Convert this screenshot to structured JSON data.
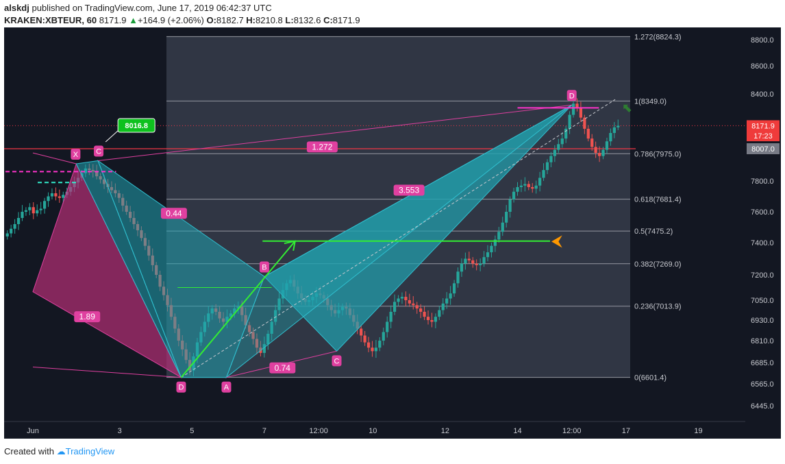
{
  "header": {
    "author": "alskdj",
    "published": "published on TradingView.com, June 17, 2019 06:42:37 UTC",
    "symbol": "KRAKEN:XBTEUR, 60",
    "last": "8171.9",
    "change": "+164.9 (+2.06%)",
    "o_label": "O:",
    "o": "8182.7",
    "h_label": "H:",
    "h": "8210.8",
    "l_label": "L:",
    "l": "8132.6",
    "c_label": "C:",
    "c": "8171.9"
  },
  "footer": {
    "created": "Created with",
    "brand": "TradingView"
  },
  "chart_data": {
    "type": "candlestick",
    "symbol": "KRAKEN:XBTEUR",
    "interval": "60",
    "y_ticks": [
      {
        "label": "8800.0",
        "value": 8800
      },
      {
        "label": "8600.0",
        "value": 8600
      },
      {
        "label": "8400.0",
        "value": 8400
      },
      {
        "label": "8007.0",
        "value": 8007
      },
      {
        "label": "7800.0",
        "value": 7800
      },
      {
        "label": "7600.0",
        "value": 7600
      },
      {
        "label": "7400.0",
        "value": 7400
      },
      {
        "label": "7200.0",
        "value": 7200
      },
      {
        "label": "7050.0",
        "value": 7050
      },
      {
        "label": "6930.0",
        "value": 6930
      },
      {
        "label": "6810.0",
        "value": 6810
      },
      {
        "label": "6685.0",
        "value": 6685
      },
      {
        "label": "6565.0",
        "value": 6565
      },
      {
        "label": "6445.0",
        "value": 6445
      }
    ],
    "x_ticks": [
      {
        "label": "Jun",
        "day": 0.6
      },
      {
        "label": "3",
        "day": 3
      },
      {
        "label": "5",
        "day": 5
      },
      {
        "label": "7",
        "day": 7
      },
      {
        "label": "12:00",
        "day": 8.5
      },
      {
        "label": "10",
        "day": 10
      },
      {
        "label": "12",
        "day": 12
      },
      {
        "label": "14",
        "day": 14
      },
      {
        "label": "12:00",
        "day": 15.5
      },
      {
        "label": "17",
        "day": 17
      },
      {
        "label": "19",
        "day": 19
      }
    ],
    "price_labels": [
      {
        "label": "8171.9",
        "value": 8171.9,
        "color": "#ef3b3b"
      },
      {
        "label": "17:23",
        "value": 8100,
        "color": "#ef3b3b"
      },
      {
        "label": "8007.0",
        "value": 8007,
        "color": "#787b86"
      }
    ],
    "fib_levels": [
      {
        "label": "1.272(8824.3)",
        "value": 8824.3
      },
      {
        "label": "1(8349.0)",
        "value": 8349.0
      },
      {
        "label": "0.786(7975.0)",
        "value": 7975.0
      },
      {
        "label": "0.618(7681.4)",
        "value": 7681.4
      },
      {
        "label": "0.5(7475.2)",
        "value": 7475.2
      },
      {
        "label": "0.382(7269.0)",
        "value": 7269.0
      },
      {
        "label": "0.236(7013.9)",
        "value": 7013.9
      },
      {
        "label": "0(6601.4)",
        "value": 6601.4
      }
    ],
    "red_line": 8007,
    "callout": {
      "label": "8016.8",
      "day": 2.8,
      "value": 8016.8
    },
    "harmonic_points": [
      {
        "label": "X",
        "day": 1.8,
        "value": 7910
      },
      {
        "label": "C",
        "day": 2.4,
        "value": 7930
      },
      {
        "label": "D",
        "day": 4.7,
        "value": 6601
      },
      {
        "label": "A",
        "day": 5.95,
        "value": 6601
      },
      {
        "label": "B",
        "day": 7.0,
        "value": 7190
      },
      {
        "label": "C",
        "day": 9.0,
        "value": 6750
      },
      {
        "label": "D",
        "day": 15.5,
        "value": 8320
      }
    ],
    "ratios": [
      {
        "label": "1.89",
        "day": 2.1,
        "value": 6950
      },
      {
        "label": "0.44",
        "day": 4.5,
        "value": 7590
      },
      {
        "label": "3.553",
        "day": 11.0,
        "value": 7740
      },
      {
        "label": "1.272",
        "day": 8.6,
        "value": 8020
      },
      {
        "label": "0.74",
        "day": 7.5,
        "value": 6655
      }
    ],
    "candles_close": [
      7460,
      7490,
      7520,
      7560,
      7600,
      7610,
      7630,
      7590,
      7610,
      7620,
      7670,
      7700,
      7720,
      7700,
      7690,
      7710,
      7730,
      7760,
      7790,
      7820,
      7850,
      7880,
      7870,
      7860,
      7830,
      7810,
      7780,
      7760,
      7740,
      7720,
      7690,
      7640,
      7600,
      7560,
      7520,
      7480,
      7430,
      7380,
      7320,
      7260,
      7200,
      7130,
      7080,
      7020,
      6950,
      6880,
      6810,
      6760,
      6700,
      6640,
      6720,
      6800,
      6860,
      6920,
      6970,
      7000,
      6980,
      6940,
      6920,
      6950,
      6970,
      7000,
      7010,
      6960,
      6900,
      6860,
      6820,
      6770,
      6740,
      6790,
      6850,
      6920,
      6990,
      7060,
      7110,
      7150,
      7170,
      7130,
      7090,
      7060,
      7040,
      7050,
      7070,
      7090,
      7080,
      7060,
      7020,
      6990,
      6970,
      6990,
      7010,
      7000,
      6960,
      6920,
      6880,
      6840,
      6800,
      6770,
      6750,
      6770,
      6810,
      6860,
      6920,
      6980,
      7040,
      7060,
      7070,
      7050,
      7030,
      7020,
      7000,
      6980,
      6950,
      6930,
      6920,
      6950,
      6990,
      7030,
      7060,
      7090,
      7150,
      7220,
      7270,
      7300,
      7290,
      7270,
      7260,
      7270,
      7310,
      7340,
      7380,
      7420,
      7470,
      7530,
      7600,
      7680,
      7730,
      7760,
      7770,
      7780,
      7760,
      7750,
      7770,
      7820,
      7870,
      7920,
      7960,
      8000,
      8040,
      8080,
      8150,
      8250,
      8330,
      8300,
      8230,
      8150,
      8080,
      8020,
      7980,
      7960,
      8000,
      8060,
      8120,
      8160,
      8172
    ],
    "harmonic_colors": {
      "pink": "#c2307c",
      "teal": "#21a3b0",
      "green_arrow": "#33ee33",
      "magenta": "#ff33cc"
    }
  }
}
